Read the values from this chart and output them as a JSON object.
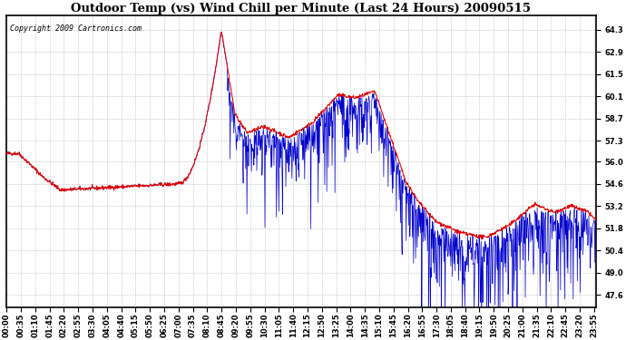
{
  "title": "Outdoor Temp (vs) Wind Chill per Minute (Last 24 Hours) 20090515",
  "copyright": "Copyright 2009 Cartronics.com",
  "yticks": [
    47.6,
    49.0,
    50.4,
    51.8,
    53.2,
    54.6,
    56.0,
    57.3,
    58.7,
    60.1,
    61.5,
    62.9,
    64.3
  ],
  "ymin": 46.8,
  "ymax": 65.2,
  "bg_color": "#ffffff",
  "grid_color": "#bbbbbb",
  "line_color_temp": "#dd0000",
  "line_color_wind": "#0000cc",
  "title_fontsize": 9.5,
  "tick_fontsize": 6.0,
  "copyright_fontsize": 6.0,
  "tick_interval_minutes": 35
}
